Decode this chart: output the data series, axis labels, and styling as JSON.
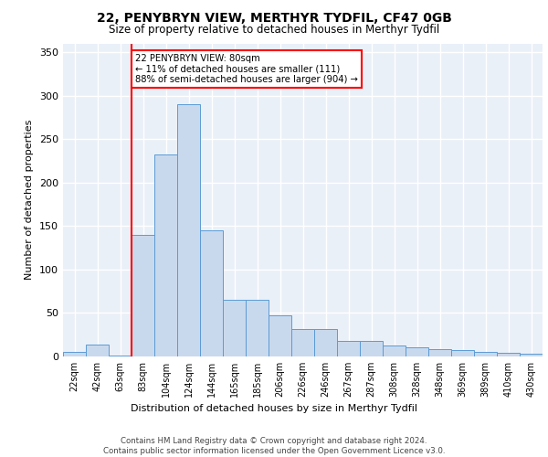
{
  "title": "22, PENYBRYN VIEW, MERTHYR TYDFIL, CF47 0GB",
  "subtitle": "Size of property relative to detached houses in Merthyr Tydfil",
  "xlabel": "Distribution of detached houses by size in Merthyr Tydfil",
  "ylabel": "Number of detached properties",
  "bar_color": "#c9d9ed",
  "bar_edge_color": "#5b9bd5",
  "categories": [
    "22sqm",
    "42sqm",
    "63sqm",
    "83sqm",
    "104sqm",
    "124sqm",
    "144sqm",
    "165sqm",
    "185sqm",
    "206sqm",
    "226sqm",
    "246sqm",
    "267sqm",
    "287sqm",
    "308sqm",
    "328sqm",
    "348sqm",
    "369sqm",
    "389sqm",
    "410sqm",
    "430sqm"
  ],
  "values": [
    5,
    14,
    1,
    140,
    232,
    290,
    145,
    65,
    65,
    47,
    32,
    32,
    18,
    18,
    13,
    11,
    8,
    7,
    5,
    4,
    3
  ],
  "red_line_index": 3,
  "annotation_line1": "22 PENYBRYN VIEW: 80sqm",
  "annotation_line2": "← 11% of detached houses are smaller (111)",
  "annotation_line3": "88% of semi-detached houses are larger (904) →",
  "ylim": [
    0,
    360
  ],
  "yticks": [
    0,
    50,
    100,
    150,
    200,
    250,
    300,
    350
  ],
  "footer": "Contains HM Land Registry data © Crown copyright and database right 2024.\nContains public sector information licensed under the Open Government Licence v3.0.",
  "plot_bg_color": "#eaf0f8",
  "grid_color": "#ffffff",
  "fig_bg_color": "#ffffff"
}
